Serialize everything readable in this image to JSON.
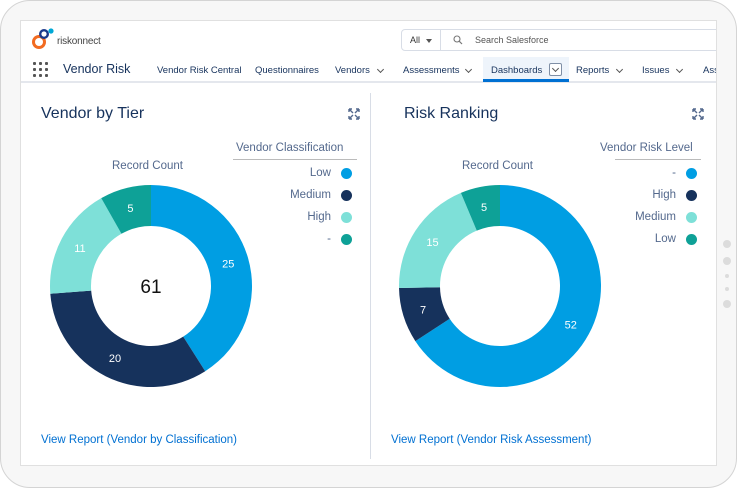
{
  "header": {
    "logo_text": "riskonnect",
    "scope": "All",
    "search_placeholder": "Search Salesforce"
  },
  "nav": {
    "app_name": "Vendor Risk",
    "items": [
      {
        "label": "Vendor Risk Central",
        "dropdown": false
      },
      {
        "label": "Questionnaires",
        "dropdown": false
      },
      {
        "label": "Vendors",
        "dropdown": true
      },
      {
        "label": "Assessments",
        "dropdown": true
      },
      {
        "label": "Dashboards",
        "dropdown": true,
        "active": true
      },
      {
        "label": "Reports",
        "dropdown": true
      },
      {
        "label": "Issues",
        "dropdown": true
      },
      {
        "label": "Ass",
        "dropdown": false
      }
    ]
  },
  "panels": [
    {
      "title": "Vendor by Tier",
      "record_count_label": "Record Count",
      "legend_title": "Vendor Classification",
      "legend": [
        {
          "label": "Low",
          "color": "#009ee3"
        },
        {
          "label": "Medium",
          "color": "#16325c"
        },
        {
          "label": "High",
          "color": "#7ee0d8"
        },
        {
          "label": "-",
          "color": "#0ea197"
        }
      ],
      "center_total": "61",
      "view_report": "View Report (Vendor by Classification)"
    },
    {
      "title": "Risk Ranking",
      "record_count_label": "Record Count",
      "legend_title": "Vendor Risk Level",
      "legend": [
        {
          "label": "-",
          "color": "#009ee3"
        },
        {
          "label": "High",
          "color": "#16325c"
        },
        {
          "label": "Medium",
          "color": "#7ee0d8"
        },
        {
          "label": "Low",
          "color": "#0ea197"
        }
      ],
      "center_total": "",
      "view_report": "View Report (Vendor Risk Assessment)"
    }
  ],
  "chart_data": [
    {
      "type": "pie",
      "title": "Vendor by Tier",
      "subtitle": "Record Count",
      "categories": [
        "Low",
        "Medium",
        "High",
        "-"
      ],
      "values": [
        25,
        20,
        11,
        5
      ],
      "colors": [
        "#009ee3",
        "#16325c",
        "#7ee0d8",
        "#0ea197"
      ],
      "total": 61
    },
    {
      "type": "pie",
      "title": "Risk Ranking",
      "subtitle": "Record Count",
      "categories": [
        "-",
        "High",
        "Medium",
        "Low"
      ],
      "values": [
        52,
        7,
        15,
        5
      ],
      "colors": [
        "#009ee3",
        "#16325c",
        "#7ee0d8",
        "#0ea197"
      ]
    }
  ]
}
